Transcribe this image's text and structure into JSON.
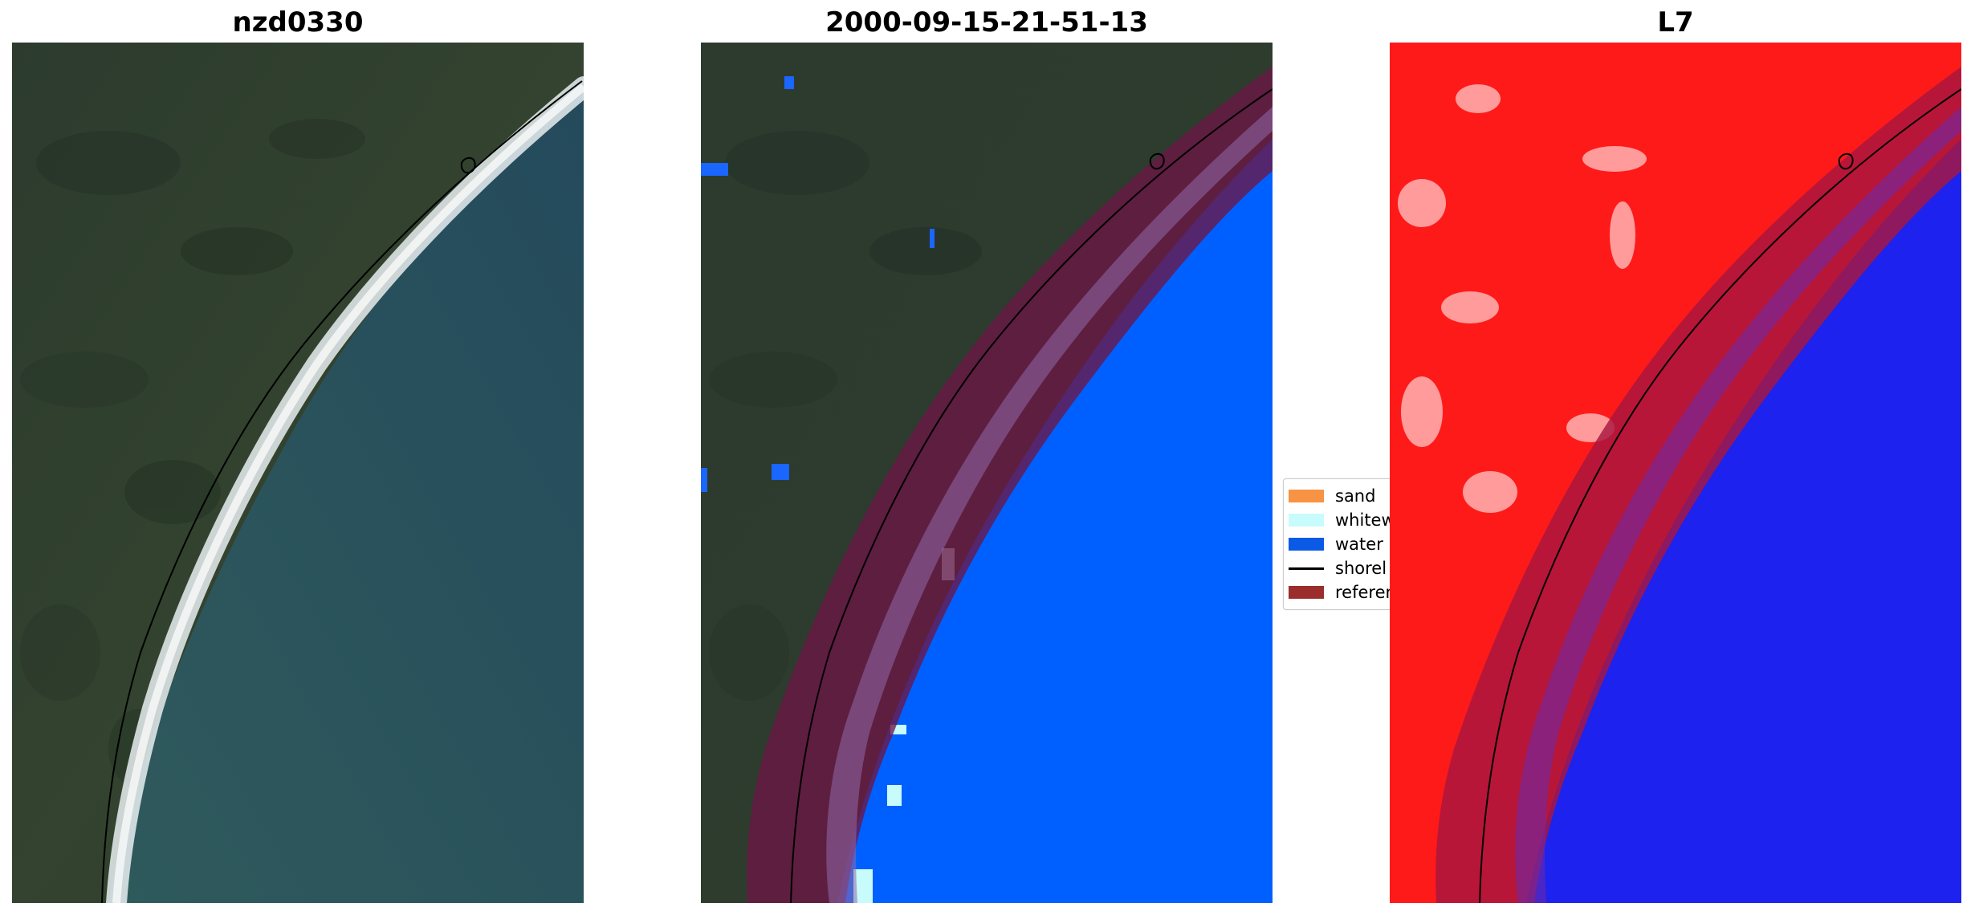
{
  "panels": [
    {
      "title": "nzd0330"
    },
    {
      "title": "2000-09-15-21-51-13"
    },
    {
      "title": "L7"
    }
  ],
  "legend": {
    "items": [
      {
        "label": "sand",
        "color": "#f79343",
        "kind": "patch"
      },
      {
        "label": "whitew",
        "color": "#c8fbfb",
        "kind": "patch"
      },
      {
        "label": "water",
        "color": "#0a5ae6",
        "kind": "patch"
      },
      {
        "label": "shorel",
        "color": "#000000",
        "kind": "line"
      },
      {
        "label": "referen",
        "color": "#9b2d2d",
        "kind": "patch"
      }
    ]
  },
  "colors": {
    "land": "#2f3e30",
    "ocean": "#2c5563",
    "water_class": "#0060ff",
    "reference_band": "#6b1645",
    "nir_land": "#ff1a1a",
    "nir_water": "#1d22ee"
  }
}
